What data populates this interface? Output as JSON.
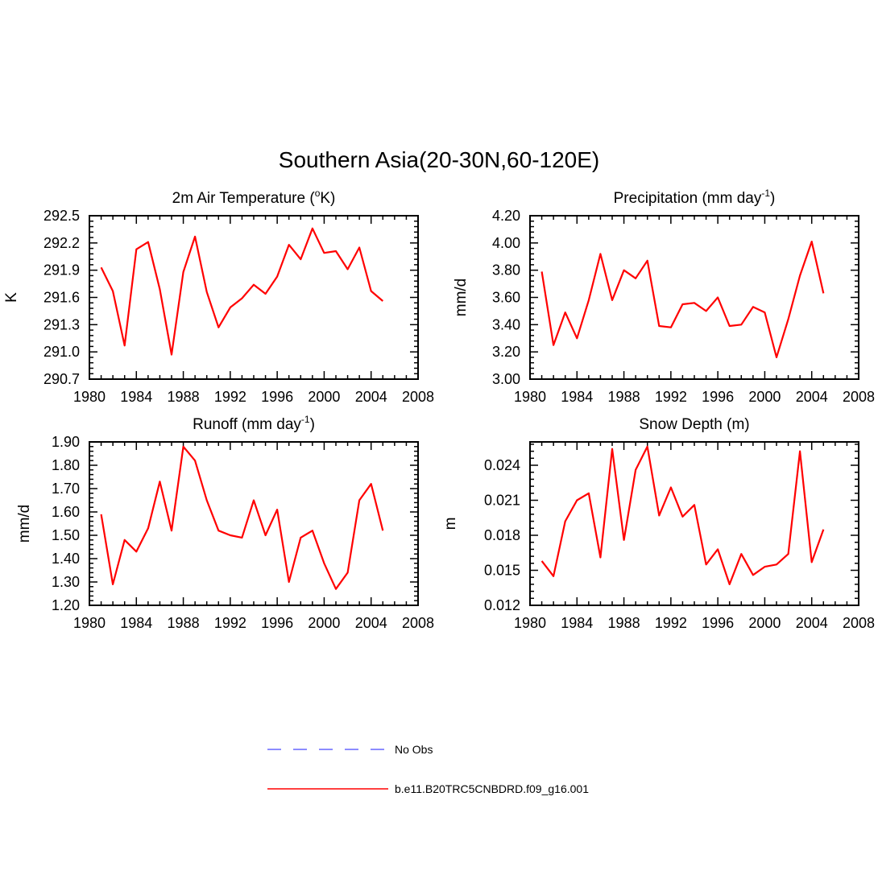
{
  "figure_title": "Southern Asia(20-30N,60-120E)",
  "legend": [
    {
      "label": "No Obs",
      "color": "#6666ff",
      "style": "dashed"
    },
    {
      "label": "b.e11.B20TRC5CNBDRD.f09_g16.001",
      "color": "#ff0000",
      "style": "solid"
    }
  ],
  "chart_data": [
    {
      "type": "line",
      "title": "2m Air Temperature (",
      "title_sup": "o",
      "title_end": "K)",
      "xlabel": "",
      "ylabel": "K",
      "xlim": [
        1980,
        2008
      ],
      "ylim": [
        290.7,
        292.5
      ],
      "xticks": [
        1980,
        1984,
        1988,
        1992,
        1996,
        2000,
        2004,
        2008
      ],
      "xtick_labels": [
        "1980",
        "1984",
        "1988",
        "1992",
        "1996",
        "2000",
        "2004",
        "2008"
      ],
      "yticks": [
        290.7,
        291.0,
        291.3,
        291.6,
        291.9,
        292.2,
        292.5
      ],
      "ytick_labels": [
        "290.7",
        "291.0",
        "291.3",
        "291.6",
        "291.9",
        "292.2",
        "292.5"
      ],
      "series": [
        {
          "name": "b.e11.B20TRC5CNBDRD.f09_g16.001",
          "color": "#ff0000",
          "x": [
            1981,
            1982,
            1983,
            1984,
            1985,
            1986,
            1987,
            1988,
            1989,
            1990,
            1991,
            1992,
            1993,
            1994,
            1995,
            1996,
            1997,
            1998,
            1999,
            2000,
            2001,
            2002,
            2003,
            2004,
            2005
          ],
          "values": [
            291.93,
            291.67,
            291.07,
            292.13,
            292.21,
            291.69,
            290.97,
            291.88,
            292.27,
            291.66,
            291.27,
            291.49,
            291.59,
            291.74,
            291.64,
            291.83,
            292.18,
            292.02,
            292.36,
            292.09,
            292.11,
            291.91,
            292.15,
            291.67,
            291.56
          ]
        }
      ]
    },
    {
      "type": "line",
      "title": "Precipitation (mm day",
      "title_sup": "-1",
      "title_end": ")",
      "xlabel": "",
      "ylabel": "mm/d",
      "xlim": [
        1980,
        2008
      ],
      "ylim": [
        3.0,
        4.2
      ],
      "xticks": [
        1980,
        1984,
        1988,
        1992,
        1996,
        2000,
        2004,
        2008
      ],
      "xtick_labels": [
        "1980",
        "1984",
        "1988",
        "1992",
        "1996",
        "2000",
        "2004",
        "2008"
      ],
      "yticks": [
        3.0,
        3.2,
        3.4,
        3.6,
        3.8,
        4.0,
        4.2
      ],
      "ytick_labels": [
        "3.00",
        "3.20",
        "3.40",
        "3.60",
        "3.80",
        "4.00",
        "4.20"
      ],
      "series": [
        {
          "name": "b.e11.B20TRC5CNBDRD.f09_g16.001",
          "color": "#ff0000",
          "x": [
            1981,
            1982,
            1983,
            1984,
            1985,
            1986,
            1987,
            1988,
            1989,
            1990,
            1991,
            1992,
            1993,
            1994,
            1995,
            1996,
            1997,
            1998,
            1999,
            2000,
            2001,
            2002,
            2003,
            2004,
            2005
          ],
          "values": [
            3.79,
            3.25,
            3.49,
            3.3,
            3.58,
            3.92,
            3.58,
            3.8,
            3.74,
            3.87,
            3.39,
            3.38,
            3.55,
            3.56,
            3.5,
            3.6,
            3.39,
            3.4,
            3.53,
            3.49,
            3.16,
            3.44,
            3.76,
            4.01,
            3.63
          ]
        }
      ]
    },
    {
      "type": "line",
      "title": "Runoff (mm day",
      "title_sup": "-1",
      "title_end": ")",
      "xlabel": "",
      "ylabel": "mm/d",
      "xlim": [
        1980,
        2008
      ],
      "ylim": [
        1.2,
        1.9
      ],
      "xticks": [
        1980,
        1984,
        1988,
        1992,
        1996,
        2000,
        2004,
        2008
      ],
      "xtick_labels": [
        "1980",
        "1984",
        "1988",
        "1992",
        "1996",
        "2000",
        "2004",
        "2008"
      ],
      "yticks": [
        1.2,
        1.3,
        1.4,
        1.5,
        1.6,
        1.7,
        1.8,
        1.9
      ],
      "ytick_labels": [
        "1.20",
        "1.30",
        "1.40",
        "1.50",
        "1.60",
        "1.70",
        "1.80",
        "1.90"
      ],
      "series": [
        {
          "name": "b.e11.B20TRC5CNBDRD.f09_g16.001",
          "color": "#ff0000",
          "x": [
            1981,
            1982,
            1983,
            1984,
            1985,
            1986,
            1987,
            1988,
            1989,
            1990,
            1991,
            1992,
            1993,
            1994,
            1995,
            1996,
            1997,
            1998,
            1999,
            2000,
            2001,
            2002,
            2003,
            2004,
            2005
          ],
          "values": [
            1.59,
            1.29,
            1.48,
            1.43,
            1.53,
            1.73,
            1.52,
            1.88,
            1.82,
            1.65,
            1.52,
            1.5,
            1.49,
            1.65,
            1.5,
            1.61,
            1.3,
            1.49,
            1.52,
            1.38,
            1.27,
            1.34,
            1.65,
            1.72,
            1.52
          ]
        }
      ]
    },
    {
      "type": "line",
      "title": "Snow Depth (m)",
      "title_sup": "",
      "title_end": "",
      "xlabel": "",
      "ylabel": "m",
      "xlim": [
        1980,
        2008
      ],
      "ylim": [
        0.012,
        0.026
      ],
      "xticks": [
        1980,
        1984,
        1988,
        1992,
        1996,
        2000,
        2004,
        2008
      ],
      "xtick_labels": [
        "1980",
        "1984",
        "1988",
        "1992",
        "1996",
        "2000",
        "2004",
        "2008"
      ],
      "yticks": [
        0.012,
        0.015,
        0.018,
        0.021,
        0.024
      ],
      "ytick_labels": [
        "0.012",
        "0.015",
        "0.018",
        "0.021",
        "0.024"
      ],
      "series": [
        {
          "name": "b.e11.B20TRC5CNBDRD.f09_g16.001",
          "color": "#ff0000",
          "x": [
            1981,
            1982,
            1983,
            1984,
            1985,
            1986,
            1987,
            1988,
            1989,
            1990,
            1991,
            1992,
            1993,
            1994,
            1995,
            1996,
            1997,
            1998,
            1999,
            2000,
            2001,
            2002,
            2003,
            2004,
            2005
          ],
          "values": [
            0.0158,
            0.0145,
            0.0192,
            0.021,
            0.0216,
            0.0161,
            0.0254,
            0.0176,
            0.0236,
            0.0256,
            0.0197,
            0.0221,
            0.0196,
            0.0206,
            0.0155,
            0.0168,
            0.0138,
            0.0164,
            0.0146,
            0.0153,
            0.0155,
            0.0164,
            0.0252,
            0.0157,
            0.0185
          ]
        }
      ]
    }
  ]
}
